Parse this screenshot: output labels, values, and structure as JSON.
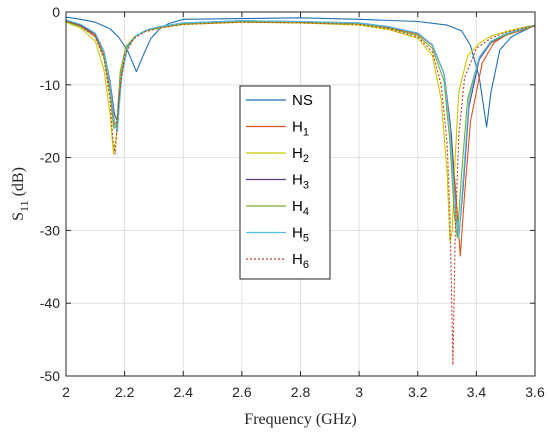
{
  "chart_data": {
    "type": "line",
    "title": "",
    "xlabel": "Frequency (GHz)",
    "ylabel_main": "S",
    "ylabel_sub": "11",
    "ylabel_unit": " (dB)",
    "xlim": [
      2,
      3.6
    ],
    "ylim": [
      -50,
      0
    ],
    "xticks": [
      "2",
      "2.2",
      "2.4",
      "2.6",
      "2.8",
      "3",
      "3.2",
      "3.4",
      "3.6"
    ],
    "yticks": [
      "0",
      "-10",
      "-20",
      "-30",
      "-40",
      "-50"
    ],
    "xtick_values": [
      2,
      2.2,
      2.4,
      2.6,
      2.8,
      3,
      3.2,
      3.4,
      3.6
    ],
    "ytick_values": [
      0,
      -10,
      -20,
      -30,
      -40,
      -50
    ],
    "grid": true,
    "legend_position": "center",
    "series": [
      {
        "name": "NS",
        "label_main": "NS",
        "label_sub": "",
        "color": "#1f6fb5",
        "dash": "",
        "x": [
          2.0,
          2.05,
          2.1,
          2.15,
          2.18,
          2.21,
          2.24,
          2.265,
          2.29,
          2.32,
          2.35,
          2.4,
          2.6,
          2.8,
          3.0,
          3.2,
          3.3,
          3.35,
          3.38,
          3.41,
          3.435,
          3.45,
          3.48,
          3.52,
          3.56,
          3.6
        ],
        "y": [
          -0.7,
          -1.0,
          -1.4,
          -2.3,
          -3.5,
          -5.3,
          -8.2,
          -5.8,
          -3.6,
          -2.3,
          -1.6,
          -1.0,
          -0.9,
          -0.8,
          -1.0,
          -1.3,
          -1.8,
          -2.6,
          -4.6,
          -9.0,
          -15.8,
          -11.0,
          -5.2,
          -3.4,
          -2.6,
          -1.8
        ]
      },
      {
        "name": "H1",
        "label_main": "H",
        "label_sub": "1",
        "color": "#d95319",
        "dash": "",
        "x": [
          2.0,
          2.05,
          2.1,
          2.13,
          2.15,
          2.165,
          2.175,
          2.19,
          2.21,
          2.24,
          2.28,
          2.32,
          2.4,
          2.6,
          2.8,
          3.0,
          3.1,
          3.2,
          3.25,
          3.29,
          3.31,
          3.33,
          3.345,
          3.36,
          3.38,
          3.42,
          3.46,
          3.5,
          3.55,
          3.6
        ],
        "y": [
          -1.2,
          -1.9,
          -3.2,
          -6.0,
          -10.5,
          -15.5,
          -15.0,
          -8.5,
          -4.8,
          -3.2,
          -2.5,
          -2.1,
          -1.6,
          -1.3,
          -1.4,
          -1.6,
          -2.1,
          -3.0,
          -4.6,
          -8.5,
          -15.0,
          -25.0,
          -33.5,
          -25.0,
          -15.0,
          -7.0,
          -4.2,
          -3.2,
          -2.6,
          -1.9
        ]
      },
      {
        "name": "H2",
        "label_main": "H",
        "label_sub": "2",
        "color": "#c9c900",
        "dash": "",
        "x": [
          2.0,
          2.05,
          2.1,
          2.13,
          2.15,
          2.162,
          2.172,
          2.185,
          2.2,
          2.23,
          2.27,
          2.32,
          2.4,
          2.6,
          2.8,
          3.0,
          3.1,
          3.2,
          3.25,
          3.28,
          3.3,
          3.31,
          3.318,
          3.325,
          3.34,
          3.37,
          3.41,
          3.45,
          3.5,
          3.55,
          3.6
        ],
        "y": [
          -1.4,
          -2.2,
          -4.0,
          -8.0,
          -14.0,
          -19.5,
          -17.0,
          -9.0,
          -5.4,
          -3.5,
          -2.6,
          -2.2,
          -1.7,
          -1.4,
          -1.5,
          -1.8,
          -2.4,
          -3.6,
          -6.0,
          -12.0,
          -22.0,
          -31.5,
          -30.0,
          -22.0,
          -11.0,
          -6.0,
          -4.3,
          -3.3,
          -2.7,
          -2.2,
          -1.8
        ]
      },
      {
        "name": "H3",
        "label_main": "H",
        "label_sub": "3",
        "color": "#5c3d8f",
        "dash": "",
        "x": [
          2.0,
          2.05,
          2.1,
          2.13,
          2.15,
          2.165,
          2.175,
          2.19,
          2.21,
          2.24,
          2.28,
          2.32,
          2.4,
          2.6,
          2.8,
          3.0,
          3.1,
          3.2,
          3.25,
          3.29,
          3.315,
          3.33,
          3.34,
          3.355,
          3.375,
          3.41,
          3.45,
          3.5,
          3.55,
          3.6
        ],
        "y": [
          -1.2,
          -1.8,
          -3.0,
          -5.5,
          -9.5,
          -14.0,
          -15.0,
          -8.5,
          -4.8,
          -3.2,
          -2.4,
          -2.0,
          -1.5,
          -1.2,
          -1.3,
          -1.5,
          -2.0,
          -2.9,
          -4.5,
          -8.5,
          -17.0,
          -28.0,
          -31.0,
          -24.0,
          -13.0,
          -6.5,
          -4.2,
          -3.1,
          -2.5,
          -1.9
        ]
      },
      {
        "name": "H4",
        "label_main": "H",
        "label_sub": "4",
        "color": "#77ac30",
        "dash": "",
        "x": [
          2.0,
          2.05,
          2.1,
          2.13,
          2.15,
          2.163,
          2.173,
          2.185,
          2.205,
          2.24,
          2.28,
          2.32,
          2.4,
          2.6,
          2.8,
          3.0,
          3.1,
          3.2,
          3.25,
          3.29,
          3.31,
          3.325,
          3.335,
          3.35,
          3.37,
          3.41,
          3.45,
          3.5,
          3.55,
          3.6
        ],
        "y": [
          -1.3,
          -2.0,
          -3.4,
          -6.2,
          -11.0,
          -16.0,
          -15.5,
          -8.2,
          -4.7,
          -3.2,
          -2.5,
          -2.1,
          -1.6,
          -1.3,
          -1.4,
          -1.6,
          -2.2,
          -3.2,
          -5.0,
          -9.5,
          -18.0,
          -28.0,
          -31.0,
          -22.0,
          -12.0,
          -6.2,
          -4.1,
          -3.1,
          -2.5,
          -1.9
        ]
      },
      {
        "name": "H5",
        "label_main": "H",
        "label_sub": "5",
        "color": "#4dbeee",
        "dash": "",
        "x": [
          2.0,
          2.05,
          2.1,
          2.13,
          2.15,
          2.165,
          2.175,
          2.19,
          2.21,
          2.24,
          2.28,
          2.32,
          2.4,
          2.6,
          2.8,
          3.0,
          3.1,
          3.2,
          3.25,
          3.29,
          3.31,
          3.328,
          3.34,
          3.355,
          3.375,
          3.41,
          3.45,
          3.5,
          3.55,
          3.6
        ],
        "y": [
          -1.1,
          -1.7,
          -2.9,
          -5.4,
          -9.8,
          -15.0,
          -16.5,
          -8.8,
          -4.9,
          -3.2,
          -2.4,
          -2.0,
          -1.5,
          -1.2,
          -1.3,
          -1.5,
          -2.0,
          -2.9,
          -4.5,
          -8.5,
          -16.0,
          -27.0,
          -31.0,
          -23.0,
          -12.0,
          -6.2,
          -4.0,
          -3.0,
          -2.4,
          -1.8
        ]
      },
      {
        "name": "H6",
        "label_main": "H",
        "label_sub": "6",
        "color": "#c0392b",
        "dash": "2,2",
        "x": [
          2.0,
          2.05,
          2.1,
          2.13,
          2.15,
          2.16,
          2.168,
          2.18,
          2.2,
          2.23,
          2.27,
          2.32,
          2.4,
          2.6,
          2.8,
          3.0,
          3.1,
          3.2,
          3.25,
          3.28,
          3.3,
          3.31,
          3.32,
          3.328,
          3.34,
          3.36,
          3.4,
          3.45,
          3.5,
          3.55,
          3.6
        ],
        "y": [
          -1.2,
          -1.9,
          -3.4,
          -6.5,
          -12.0,
          -17.5,
          -19.5,
          -12.0,
          -6.0,
          -3.7,
          -2.7,
          -2.2,
          -1.7,
          -1.4,
          -1.5,
          -1.7,
          -2.3,
          -3.4,
          -5.5,
          -10.0,
          -18.0,
          -28.0,
          -48.5,
          -30.0,
          -17.0,
          -9.0,
          -5.0,
          -3.6,
          -2.8,
          -2.3,
          -1.9
        ]
      }
    ]
  }
}
